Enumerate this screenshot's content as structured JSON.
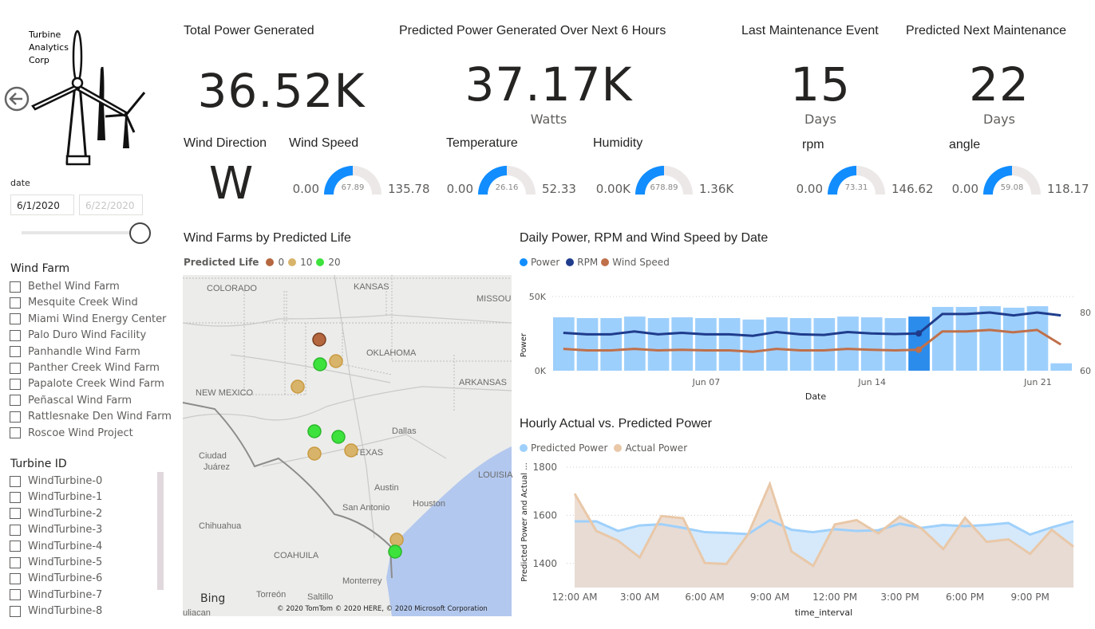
{
  "logo": {
    "line1": "Turbine",
    "line2": "Analytics",
    "line3": "Corp"
  },
  "nav": {
    "back_icon": "arrow-left-circle-icon"
  },
  "date_slicer": {
    "label": "date",
    "start": "6/1/2020",
    "end": "6/22/2020"
  },
  "wind_farm_slicer": {
    "title": "Wind Farm",
    "items": [
      "Bethel Wind Farm",
      "Mesquite Creek Wind",
      "Miami Wind Energy Center",
      "Palo Duro Wind Facility",
      "Panhandle Wind Farm",
      "Panther Creek Wind Farm",
      "Papalote Creek Wind Farm",
      "Peñascal Wind Farm",
      "Rattlesnake Den Wind Farm",
      "Roscoe Wind Project"
    ]
  },
  "turbine_slicer": {
    "title": "Turbine ID",
    "items": [
      "WindTurbine-0",
      "WindTurbine-1",
      "WindTurbine-2",
      "WindTurbine-3",
      "WindTurbine-4",
      "WindTurbine-5",
      "WindTurbine-6",
      "WindTurbine-7",
      "WindTurbine-8"
    ]
  },
  "kpis": {
    "total_power": {
      "title": "Total Power Generated",
      "value": "36.52K"
    },
    "predicted_power": {
      "title": "Predicted Power Generated Over Next 6 Hours",
      "value": "37.17K",
      "unit": "Watts"
    },
    "last_maintenance": {
      "title": "Last Maintenance Event",
      "value": "15",
      "unit": "Days"
    },
    "next_maintenance": {
      "title": "Predicted Next Maintenance",
      "value": "22",
      "unit": "Days"
    },
    "wind_direction": {
      "title": "Wind Direction",
      "value": "W"
    }
  },
  "gauges": {
    "wind_speed": {
      "title": "Wind Speed",
      "min": "0.00",
      "value": "67.89",
      "max": "135.78",
      "fraction": 0.5
    },
    "temperature": {
      "title": "Temperature",
      "min": "0.00",
      "value": "26.16",
      "max": "52.33",
      "fraction": 0.5
    },
    "humidity": {
      "title": "Humidity",
      "min": "0.00K",
      "value": "678.89",
      "max": "1.36K",
      "fraction": 0.5
    },
    "rpm": {
      "title": "rpm",
      "min": "0.00",
      "value": "73.31",
      "max": "146.62",
      "fraction": 0.5
    },
    "angle": {
      "title": "angle",
      "min": "0.00",
      "value": "59.08",
      "max": "118.17",
      "fraction": 0.5
    }
  },
  "colors": {
    "accent": "#118DFF",
    "gauge_bg": "#EDE8E8",
    "bar": "#9DCFFC",
    "bar_selected": "#2B8CEB",
    "rpm": "#1F3C8C",
    "wind": "#C0704A",
    "predicted": "#9ED0FB",
    "actual": "#E9C8A8",
    "life0": "#B5673F",
    "life10": "#D8B46A",
    "life20": "#3DE23D"
  },
  "map": {
    "title": "Wind Farms by Predicted Life",
    "legend_title": "Predicted Life",
    "legend": [
      "0",
      "10",
      "20"
    ],
    "labels": {
      "colorado": "COLORADO",
      "kansas": "KANSAS",
      "missouri": "MISSOU",
      "oklahoma": "OKLAHOMA",
      "new_mexico": "NEW MEXICO",
      "arkansas": "ARKANSAS",
      "dallas": "Dallas",
      "texas": "TEXAS",
      "ciudad": "Ciudad",
      "juarez": "Juárez",
      "austin": "Austin",
      "houston": "Houston",
      "san_antonio": "San Antonio",
      "louisiana": "LOUISIA",
      "chihuahua": "Chihuahua",
      "coahuila": "COAHUILA",
      "monterrey": "Monterrey",
      "torreon": "Torreón",
      "saltillo": "Saltillo",
      "culiacan": "uliacan"
    },
    "brand": "Bing",
    "copyright": "© 2020 TomTom © 2020 HERE, © 2020 Microsoft Corporation",
    "farms": [
      {
        "life": 0
      },
      {
        "life": 20
      },
      {
        "life": 10
      },
      {
        "life": 10
      },
      {
        "life": 20
      },
      {
        "life": 20
      },
      {
        "life": 10
      },
      {
        "life": 10
      },
      {
        "life": 10
      },
      {
        "life": 20
      }
    ]
  },
  "chart_data": [
    {
      "type": "bar",
      "title": "Daily Power, RPM and Wind Speed by Date",
      "legend": [
        "Power",
        "RPM",
        "Wind Speed"
      ],
      "legend_position": "top-left",
      "xlabel": "Date",
      "ylabel": "Power",
      "x_ticks": [
        "Jun 07",
        "Jun 14",
        "Jun 21"
      ],
      "y_ticks": [
        "0K",
        "50K"
      ],
      "y2_ticks": [
        "60",
        "80"
      ],
      "ylim": [
        0,
        50000
      ],
      "y2lim": [
        60,
        80
      ],
      "grid": true,
      "categories": [
        "2020-06-01",
        "2020-06-02",
        "2020-06-03",
        "2020-06-04",
        "2020-06-05",
        "2020-06-06",
        "2020-06-07",
        "2020-06-08",
        "2020-06-09",
        "2020-06-10",
        "2020-06-11",
        "2020-06-12",
        "2020-06-13",
        "2020-06-14",
        "2020-06-15",
        "2020-06-16",
        "2020-06-17",
        "2020-06-18",
        "2020-06-19",
        "2020-06-20",
        "2020-06-21",
        "2020-06-22"
      ],
      "selected": "2020-06-16",
      "series": [
        {
          "name": "Power",
          "values": [
            36000,
            35500,
            35500,
            36500,
            35500,
            36000,
            35500,
            35500,
            34500,
            36000,
            35500,
            35500,
            36500,
            36000,
            35500,
            36500,
            43000,
            43000,
            43500,
            42500,
            43500,
            5000
          ]
        },
        {
          "name": "RPM",
          "values": [
            73.0,
            72.5,
            72.5,
            73.5,
            72.5,
            73.0,
            72.5,
            72.5,
            72.0,
            73.3,
            72.5,
            72.3,
            73.3,
            72.8,
            72.6,
            72.8,
            79.5,
            79.5,
            80.0,
            79.0,
            80.0,
            79.0
          ]
        },
        {
          "name": "Wind Speed",
          "values": [
            67.5,
            67.0,
            67.0,
            67.5,
            67.0,
            67.2,
            67.0,
            67.0,
            66.5,
            67.5,
            67.0,
            67.0,
            67.5,
            67.2,
            67.0,
            67.2,
            73.5,
            73.5,
            74.0,
            73.2,
            74.0,
            69.0
          ]
        }
      ]
    },
    {
      "type": "area",
      "title": "Hourly Actual vs. Predicted Power",
      "legend": [
        "Predicted Power",
        "Actual Power"
      ],
      "legend_position": "top-left",
      "xlabel": "time_interval",
      "ylabel": "Predicted Power and Actual ...",
      "x_ticks": [
        "12:00 AM",
        "3:00 AM",
        "6:00 AM",
        "9:00 AM",
        "12:00 PM",
        "3:00 PM",
        "6:00 PM",
        "9:00 PM"
      ],
      "y_ticks": [
        "1400",
        "1600",
        "1800"
      ],
      "ylim": [
        1300,
        1800
      ],
      "grid": true,
      "x": [
        "0:00",
        "1:00",
        "2:00",
        "3:00",
        "4:00",
        "5:00",
        "6:00",
        "7:00",
        "8:00",
        "9:00",
        "10:00",
        "11:00",
        "12:00",
        "13:00",
        "14:00",
        "15:00",
        "16:00",
        "17:00",
        "18:00",
        "19:00",
        "20:00",
        "21:00",
        "22:00",
        "23:00"
      ],
      "series": [
        {
          "name": "Predicted Power",
          "values": [
            1575,
            1575,
            1535,
            1558,
            1563,
            1548,
            1530,
            1527,
            1522,
            1580,
            1540,
            1530,
            1542,
            1535,
            1538,
            1565,
            1548,
            1560,
            1555,
            1560,
            1568,
            1520,
            1550,
            1575
          ]
        },
        {
          "name": "Actual Power",
          "values": [
            1690,
            1535,
            1495,
            1425,
            1597,
            1588,
            1402,
            1398,
            1522,
            1730,
            1450,
            1390,
            1562,
            1580,
            1525,
            1595,
            1545,
            1460,
            1590,
            1490,
            1500,
            1440,
            1540,
            1470
          ]
        }
      ]
    }
  ]
}
